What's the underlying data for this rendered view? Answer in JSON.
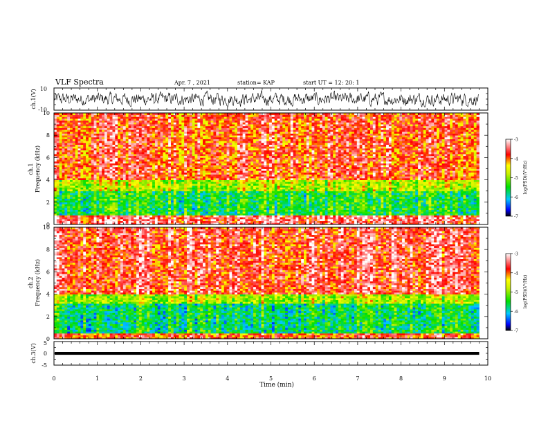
{
  "header": {
    "title": "VLF Spectra",
    "date": "Apr. 7 , 2021",
    "station": "station= KAP",
    "start": "start UT =  12: 20: 1"
  },
  "chart_data": [
    {
      "type": "line",
      "panel": "ch1-waveform",
      "ylabel": "ch.1(V)",
      "ylim": [
        -10,
        10
      ],
      "yticks": [
        "10",
        "-10"
      ],
      "xlim": [
        0,
        10
      ],
      "description_values": {
        "min": -7,
        "max": 8,
        "typical_range": [
          -6,
          6
        ]
      }
    },
    {
      "type": "heatmap",
      "panel": "ch1-spectrogram",
      "ylabel": "ch.1\nFrequency (kHz)",
      "ylabel_lines": [
        "ch.1",
        "Frequency (kHz)"
      ],
      "ylim": [
        0,
        10
      ],
      "yticks": [
        "0",
        "2",
        "4",
        "6",
        "8",
        "10"
      ],
      "xlim": [
        0,
        9.8
      ],
      "colorbar": {
        "label": "log(PSD)(V²/Hz)",
        "range": [
          -7,
          -3
        ],
        "ticks": [
          "-3",
          "-4",
          "-5",
          "-6",
          "-7"
        ]
      },
      "bands": [
        {
          "from_khz": 0,
          "to_khz": 0.8,
          "level": -3.5
        },
        {
          "from_khz": 0.8,
          "to_khz": 3.0,
          "level": -5.5
        },
        {
          "from_khz": 3.0,
          "to_khz": 4.0,
          "level": -4.8
        },
        {
          "from_khz": 4.0,
          "to_khz": 10,
          "level": -3.8
        }
      ]
    },
    {
      "type": "heatmap",
      "panel": "ch2-spectrogram",
      "ylabel_lines": [
        "ch.2",
        "Frequency (kHz)"
      ],
      "ylim": [
        0,
        10
      ],
      "yticks": [
        "0",
        "2",
        "4",
        "6",
        "8",
        "10"
      ],
      "xlim": [
        0,
        9.8
      ],
      "colorbar": {
        "label": "log(PSD)(V²/Hz)",
        "range": [
          -7,
          -3
        ],
        "ticks": [
          "-3",
          "-4",
          "-5",
          "-6",
          "-7"
        ]
      },
      "bands": [
        {
          "from_khz": 0,
          "to_khz": 0.5,
          "level": -3.8
        },
        {
          "from_khz": 0.5,
          "to_khz": 3.2,
          "level": -5.6
        },
        {
          "from_khz": 3.2,
          "to_khz": 4.0,
          "level": -4.8
        },
        {
          "from_khz": 4.0,
          "to_khz": 10,
          "level": -3.6
        }
      ]
    },
    {
      "type": "line",
      "panel": "ch3-waveform",
      "ylabel": "ch.3(V)",
      "ylim": [
        -5,
        5
      ],
      "yticks": [
        "5",
        "0",
        "-5"
      ],
      "xlim": [
        0,
        10
      ],
      "level_band": [
        -0.6,
        0.6
      ]
    }
  ],
  "xaxis": {
    "label": "Time (min)",
    "ticks": [
      "0",
      "1",
      "2",
      "3",
      "4",
      "5",
      "6",
      "7",
      "8",
      "9",
      "10"
    ],
    "range": [
      0,
      10
    ]
  }
}
